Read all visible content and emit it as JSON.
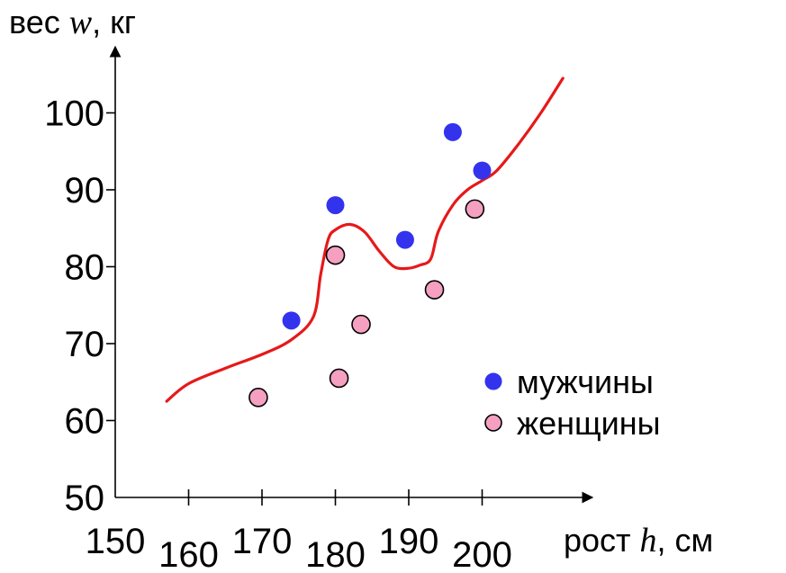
{
  "chart_data": {
    "type": "scatter",
    "ylabel": {
      "prefix": "вес ",
      "var": "w",
      "suffix": ", кг"
    },
    "xlabel": {
      "prefix": "рост ",
      "var": "h",
      "suffix": ", см"
    },
    "xlim": [
      150,
      215
    ],
    "ylim": [
      50,
      108
    ],
    "x_ticks": [
      {
        "value": 150,
        "label": "150",
        "pos": "low"
      },
      {
        "value": 160,
        "label": "160",
        "pos": "high"
      },
      {
        "value": 170,
        "label": "170",
        "pos": "low"
      },
      {
        "value": 180,
        "label": "180",
        "pos": "high"
      },
      {
        "value": 190,
        "label": "190",
        "pos": "low"
      },
      {
        "value": 200,
        "label": "200",
        "pos": "high"
      }
    ],
    "y_ticks": [
      {
        "value": 50,
        "label": "50"
      },
      {
        "value": 60,
        "label": "60"
      },
      {
        "value": 70,
        "label": "70"
      },
      {
        "value": 80,
        "label": "80"
      },
      {
        "value": 90,
        "label": "90"
      },
      {
        "value": 100,
        "label": "100"
      }
    ],
    "series": [
      {
        "name": "мужчины",
        "fill": "#3333ee",
        "stroke": "#3333ee",
        "points": [
          {
            "x": 174,
            "y": 73
          },
          {
            "x": 180,
            "y": 88
          },
          {
            "x": 189.5,
            "y": 83.5
          },
          {
            "x": 196,
            "y": 97.5
          },
          {
            "x": 200,
            "y": 92.5
          }
        ]
      },
      {
        "name": "женщины",
        "fill": "#f5a0c0",
        "stroke": "#000000",
        "points": [
          {
            "x": 169.5,
            "y": 63
          },
          {
            "x": 180,
            "y": 81.5
          },
          {
            "x": 180.5,
            "y": 65.5
          },
          {
            "x": 183.5,
            "y": 72.5
          },
          {
            "x": 193.5,
            "y": 77
          },
          {
            "x": 199,
            "y": 87.5
          }
        ]
      }
    ],
    "trend_curve": {
      "color": "#e61919",
      "points": [
        [
          157,
          62.5
        ],
        [
          160,
          64.8
        ],
        [
          165,
          66.8
        ],
        [
          170,
          68.6
        ],
        [
          174,
          70.5
        ],
        [
          177,
          73.5
        ],
        [
          178,
          79
        ],
        [
          179,
          83.5
        ],
        [
          180,
          84.8
        ],
        [
          182,
          85.5
        ],
        [
          184,
          84.5
        ],
        [
          186,
          82
        ],
        [
          188,
          80
        ],
        [
          190,
          79.8
        ],
        [
          191.5,
          80.2
        ],
        [
          193,
          81
        ],
        [
          194,
          84.5
        ],
        [
          196,
          88
        ],
        [
          198,
          90
        ],
        [
          200,
          91.2
        ],
        [
          202,
          92.5
        ],
        [
          205,
          96
        ],
        [
          208,
          100
        ],
        [
          211,
          104.5
        ]
      ]
    },
    "legend": {
      "position": "right"
    }
  }
}
